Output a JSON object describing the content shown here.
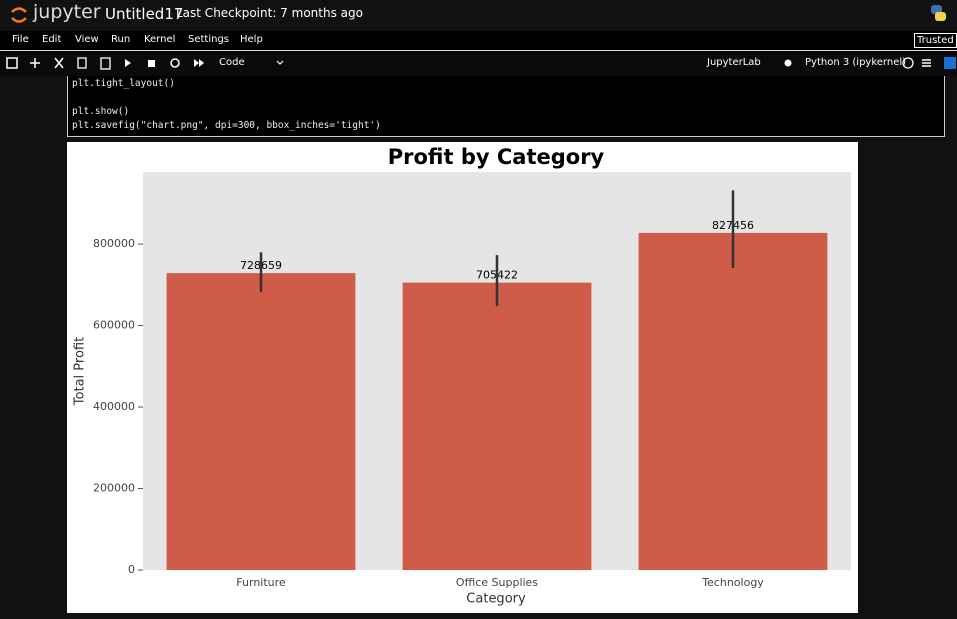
{
  "header": {
    "logo": "jupyter",
    "notebook": "Untitled17",
    "checkpoint": "Last Checkpoint: 7 months ago",
    "trusted": "Trusted"
  },
  "menu": [
    "File",
    "Edit",
    "View",
    "Run",
    "Kernel",
    "Settings",
    "Help"
  ],
  "toolbar": {
    "cell_type": "Code",
    "lab": "JupyterLab",
    "kernel": "Python 3 (ipykernel)"
  },
  "code": {
    "lines": [
      "plt.tight_layout()",
      "plt.show()",
      "plt.savefig(\"chart.png\", dpi=300, bbox_inches='tight')"
    ]
  },
  "chart_data": {
    "type": "bar",
    "title": "Profit by Category",
    "x_label": "Category",
    "y_label": "Total Profit",
    "categories": [
      "Furniture",
      "Office Supplies",
      "Technology"
    ],
    "values": [
      728659,
      705422,
      827456
    ],
    "ci_low": [
      682000,
      648000,
      741000
    ],
    "ci_high": [
      780000,
      773000,
      932000
    ],
    "color": "#cf5b49",
    "ylim": [
      0,
      977000
    ],
    "yticks": [
      0,
      200000,
      400000,
      600000,
      800000
    ],
    "grid": false
  }
}
